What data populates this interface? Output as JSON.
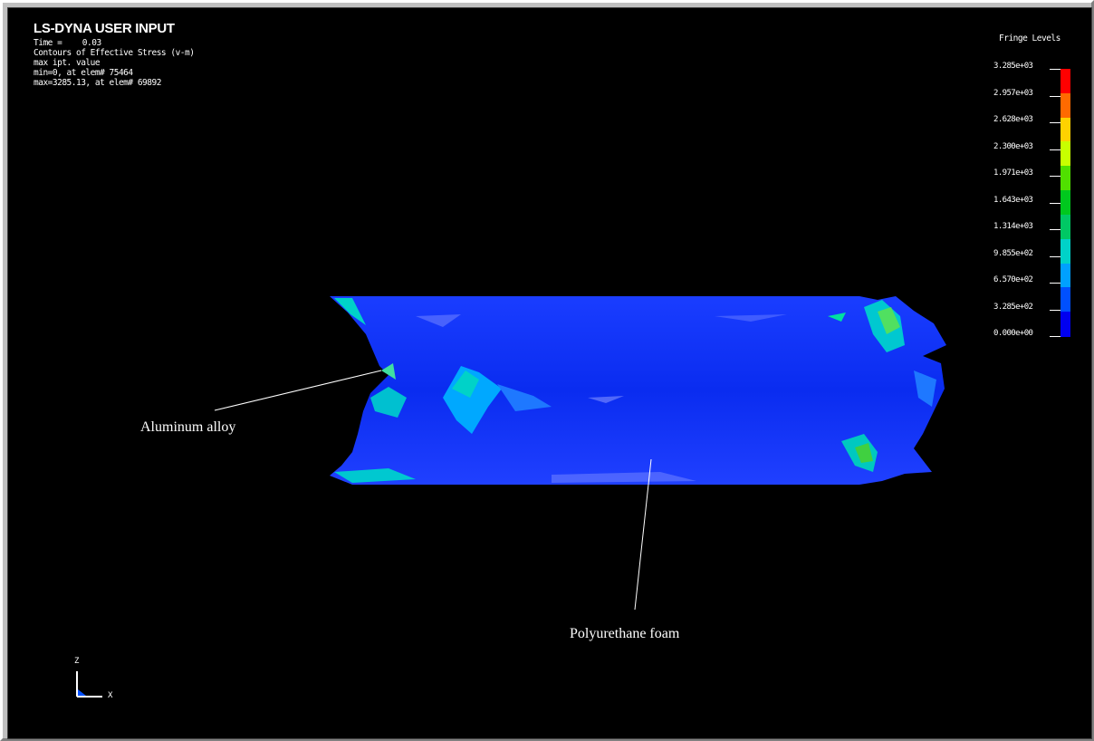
{
  "header": {
    "title": "LS-DYNA USER INPUT",
    "time_label": "Time =",
    "time_value": "0.03",
    "contour_label": "Contours of Effective Stress (v-m)",
    "max_ipt": "max ipt. value",
    "min_line": "min=0, at elem# 75464",
    "max_line": "max=3285.13, at elem# 69892"
  },
  "legend": {
    "title": "Fringe Levels",
    "levels": [
      "3.285e+03",
      "2.957e+03",
      "2.628e+03",
      "2.300e+03",
      "1.971e+03",
      "1.643e+03",
      "1.314e+03",
      "9.855e+02",
      "6.570e+02",
      "3.285e+02",
      "0.000e+00"
    ],
    "colors": [
      "#ff0000",
      "#ff6a00",
      "#ffd200",
      "#c8ff00",
      "#50e000",
      "#00c81e",
      "#00c864",
      "#00d2c8",
      "#00a0ff",
      "#0050ff",
      "#0000f0"
    ]
  },
  "annotations": {
    "aluminum": "Aluminum alloy",
    "foam": "Polyurethane foam"
  },
  "triad": {
    "z": "Z",
    "x": "X"
  }
}
